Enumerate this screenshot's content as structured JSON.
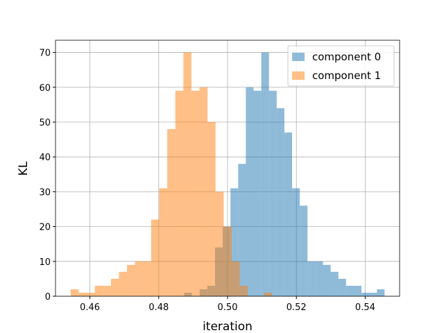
{
  "chart_data": {
    "type": "histogram",
    "xlabel": "iteration",
    "ylabel": "KL",
    "xlim": [
      0.45,
      0.55
    ],
    "xticks": [
      0.46,
      0.48,
      0.5,
      0.52,
      0.54
    ],
    "ylim": [
      0,
      73.5
    ],
    "yticks": [
      0,
      10,
      20,
      30,
      40,
      50,
      60,
      70
    ],
    "grid": true,
    "legend": "upper right",
    "alpha": 0.5,
    "series": [
      {
        "name": "component 0",
        "color": "#1f77b4",
        "bins": [
          0.4874,
          0.48964,
          0.49188,
          0.49412,
          0.49636,
          0.4986,
          0.50084,
          0.50308,
          0.50532,
          0.50756,
          0.5098,
          0.51204,
          0.51428,
          0.51652,
          0.51876,
          0.521,
          0.52324,
          0.52548,
          0.52772,
          0.52996,
          0.5322,
          0.53444,
          0.53668,
          0.53892,
          0.54116,
          0.5434,
          0.54564
        ],
        "values": [
          1,
          0,
          2,
          3,
          14,
          20,
          31,
          38,
          60,
          59,
          70,
          59,
          54,
          47,
          31,
          26,
          10,
          10,
          9,
          7,
          5,
          3,
          3,
          1,
          1,
          2
        ]
      },
      {
        "name": "component 1",
        "color": "#ff7f0e",
        "bins": [
          0.4544,
          0.45674,
          0.45908,
          0.46142,
          0.46376,
          0.4661,
          0.46844,
          0.47078,
          0.47312,
          0.47546,
          0.4778,
          0.48014,
          0.48248,
          0.48482,
          0.48716,
          0.4895,
          0.49184,
          0.49418,
          0.49652,
          0.49886,
          0.5012,
          0.50354,
          0.50588,
          0.50822,
          0.51056,
          0.5129
        ],
        "values": [
          2,
          1,
          1,
          3,
          3,
          5,
          7,
          9,
          10,
          10,
          22,
          31,
          48,
          59,
          70,
          59,
          60,
          50,
          30,
          20,
          10,
          3,
          0,
          0,
          1
        ]
      }
    ]
  }
}
